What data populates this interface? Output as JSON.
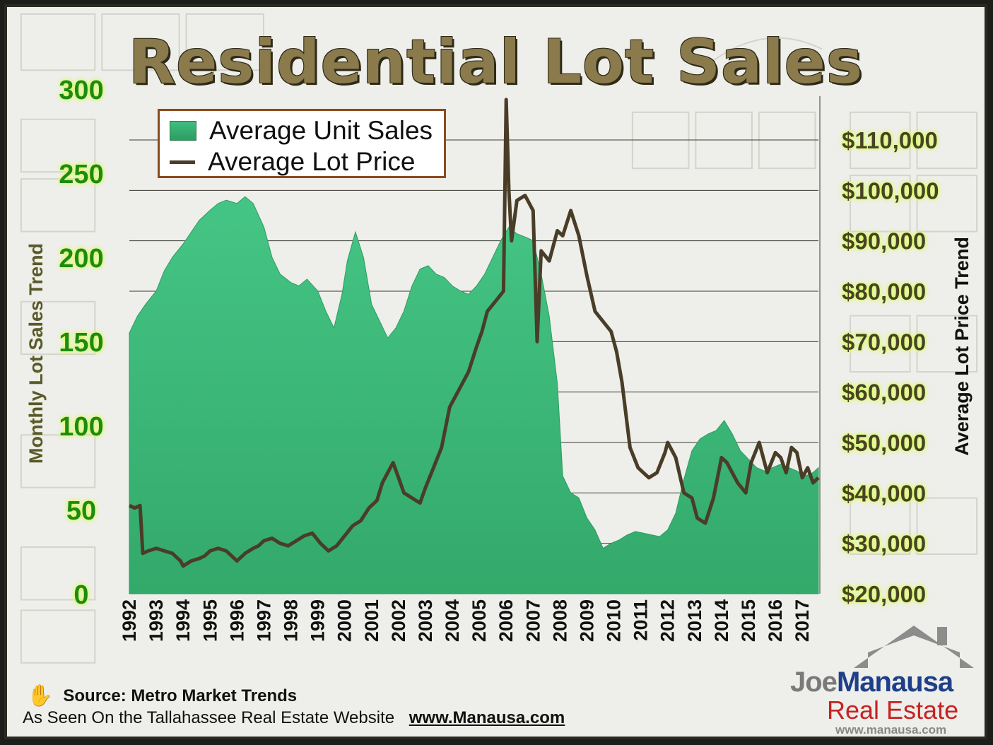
{
  "title": "Residential Lot Sales",
  "source_text": "Source:  Metro Market Trends",
  "seen_on_text": "As Seen On the Tallahassee Real Estate Website",
  "seen_on_url": "www.Manausa.com",
  "logo": {
    "joe": "Joe",
    "manausa": "Manausa",
    "real_estate": "Real Estate",
    "url": "www.manausa.com"
  },
  "legend": [
    "Average Unit Sales",
    "Average Lot Price"
  ],
  "colors": {
    "sales_fill": "#3fbf7f",
    "price_line": "#4a3d28",
    "axis_left": "#1f8a16",
    "title": "#8a7a4c"
  },
  "icons": {
    "source": "hand-icon",
    "logo": "house-icon"
  },
  "chart_data": {
    "type": "area",
    "title": "Residential Lot Sales",
    "y_left_label": "Monthly Lot Sales Trend",
    "y_right_label": "Average Lot Price Trend",
    "y_left_range": [
      0,
      300
    ],
    "y_right_range": [
      20000,
      110000
    ],
    "y_left_ticks": [
      "0",
      "50",
      "100",
      "150",
      "200",
      "250",
      "300"
    ],
    "y_right_ticks": [
      "$20,000",
      "$30,000",
      "$40,000",
      "$50,000",
      "$60,000",
      "$70,000",
      "$80,000",
      "$90,000",
      "$100,000",
      "$110,000"
    ],
    "x_range": [
      1992.0,
      2017.6
    ],
    "x_ticks": [
      "1992",
      "1993",
      "1994",
      "1995",
      "1996",
      "1997",
      "1998",
      "1999",
      "2000",
      "2001",
      "2002",
      "2003",
      "2004",
      "2005",
      "2006",
      "2007",
      "2008",
      "2009",
      "2010",
      "2011",
      "2012",
      "2013",
      "2014",
      "2015",
      "2016",
      "2017"
    ],
    "grid": "horizontal lines at right-axis price levels",
    "legend_position": "top-left",
    "series": [
      {
        "name": "Average Unit Sales",
        "kind": "area",
        "x": [
          1992.0,
          1992.3,
          1992.6,
          1993.0,
          1993.3,
          1993.6,
          1994.0,
          1994.3,
          1994.6,
          1995.0,
          1995.3,
          1995.6,
          1996.0,
          1996.3,
          1996.6,
          1997.0,
          1997.3,
          1997.6,
          1998.0,
          1998.3,
          1998.6,
          1999.0,
          1999.3,
          1999.6,
          1999.9,
          2000.1,
          2000.4,
          2000.7,
          2001.0,
          2001.3,
          2001.6,
          2001.9,
          2002.2,
          2002.5,
          2002.8,
          2003.1,
          2003.4,
          2003.7,
          2004.0,
          2004.3,
          2004.6,
          2004.9,
          2005.2,
          2005.5,
          2005.8,
          2006.1,
          2006.4,
          2006.7,
          2007.0,
          2007.3,
          2007.6,
          2007.9,
          2008.1,
          2008.4,
          2008.7,
          2009.0,
          2009.3,
          2009.6,
          2009.9,
          2010.2,
          2010.5,
          2010.8,
          2011.1,
          2011.4,
          2011.7,
          2012.0,
          2012.3,
          2012.6,
          2012.9,
          2013.2,
          2013.5,
          2013.8,
          2014.1,
          2014.4,
          2014.7,
          2015.0,
          2015.3,
          2015.6,
          2015.9,
          2016.2,
          2016.5,
          2016.8,
          2017.1,
          2017.4,
          2017.6
        ],
        "values": [
          155,
          165,
          172,
          180,
          192,
          200,
          208,
          215,
          222,
          228,
          232,
          234,
          232,
          236,
          232,
          218,
          200,
          190,
          185,
          183,
          187,
          180,
          168,
          158,
          178,
          198,
          215,
          200,
          172,
          162,
          152,
          158,
          168,
          183,
          193,
          195,
          190,
          188,
          183,
          180,
          178,
          183,
          190,
          200,
          210,
          218,
          214,
          212,
          210,
          190,
          165,
          125,
          70,
          60,
          57,
          45,
          38,
          27,
          30,
          32,
          35,
          37,
          36,
          35,
          34,
          38,
          48,
          68,
          85,
          92,
          95,
          97,
          103,
          95,
          85,
          80,
          75,
          73,
          75,
          77,
          75,
          73,
          70,
          72,
          75
        ]
      },
      {
        "name": "Average Lot Price",
        "kind": "line",
        "x": [
          1992.0,
          1992.2,
          1992.4,
          1992.5,
          1992.7,
          1993.0,
          1993.3,
          1993.6,
          1993.9,
          1994.0,
          1994.3,
          1994.6,
          1994.8,
          1995.0,
          1995.3,
          1995.6,
          1995.8,
          1996.0,
          1996.3,
          1996.6,
          1996.8,
          1997.0,
          1997.3,
          1997.6,
          1997.9,
          1998.2,
          1998.5,
          1998.8,
          1999.1,
          1999.4,
          1999.7,
          2000.0,
          2000.3,
          2000.6,
          2000.9,
          2001.2,
          2001.4,
          2001.6,
          2001.8,
          2002.0,
          2002.2,
          2002.5,
          2002.8,
          2003.0,
          2003.3,
          2003.6,
          2003.9,
          2004.1,
          2004.3,
          2004.6,
          2004.9,
          2005.1,
          2005.3,
          2005.6,
          2005.9,
          2006.0,
          2006.1,
          2006.2,
          2006.4,
          2006.7,
          2007.0,
          2007.15,
          2007.3,
          2007.6,
          2007.9,
          2008.1,
          2008.4,
          2008.7,
          2009.0,
          2009.3,
          2009.6,
          2009.9,
          2010.1,
          2010.3,
          2010.6,
          2010.9,
          2011.1,
          2011.3,
          2011.6,
          2011.9,
          2012.0,
          2012.3,
          2012.6,
          2012.9,
          2013.1,
          2013.4,
          2013.7,
          2014.0,
          2014.2,
          2014.4,
          2014.6,
          2014.9,
          2015.1,
          2015.4,
          2015.7,
          2016.0,
          2016.2,
          2016.4,
          2016.6,
          2016.8,
          2017.0,
          2017.2,
          2017.4,
          2017.6
        ],
        "values": [
          37500,
          37000,
          37500,
          28000,
          28500,
          29000,
          28500,
          28000,
          26500,
          25500,
          26500,
          27000,
          27500,
          28500,
          29000,
          28500,
          27500,
          26500,
          28000,
          29000,
          29500,
          30500,
          31000,
          30000,
          29500,
          30500,
          31500,
          32000,
          30000,
          28500,
          29500,
          31500,
          33500,
          34500,
          37000,
          38500,
          42000,
          44000,
          46000,
          43000,
          40000,
          39000,
          38000,
          41000,
          45000,
          49000,
          57000,
          59000,
          61000,
          64000,
          69000,
          72000,
          76000,
          78000,
          80000,
          118000,
          100000,
          90000,
          98000,
          99000,
          96000,
          70000,
          88000,
          86000,
          92000,
          91000,
          96000,
          91000,
          83000,
          76000,
          74000,
          72000,
          68000,
          62000,
          49000,
          45000,
          44000,
          43000,
          44000,
          48000,
          50000,
          47000,
          40000,
          39000,
          35000,
          34000,
          39000,
          47000,
          46000,
          44000,
          42000,
          40000,
          46000,
          50000,
          44000,
          48000,
          47000,
          44000,
          49000,
          48000,
          43000,
          45000,
          42000,
          43000
        ]
      }
    ]
  }
}
